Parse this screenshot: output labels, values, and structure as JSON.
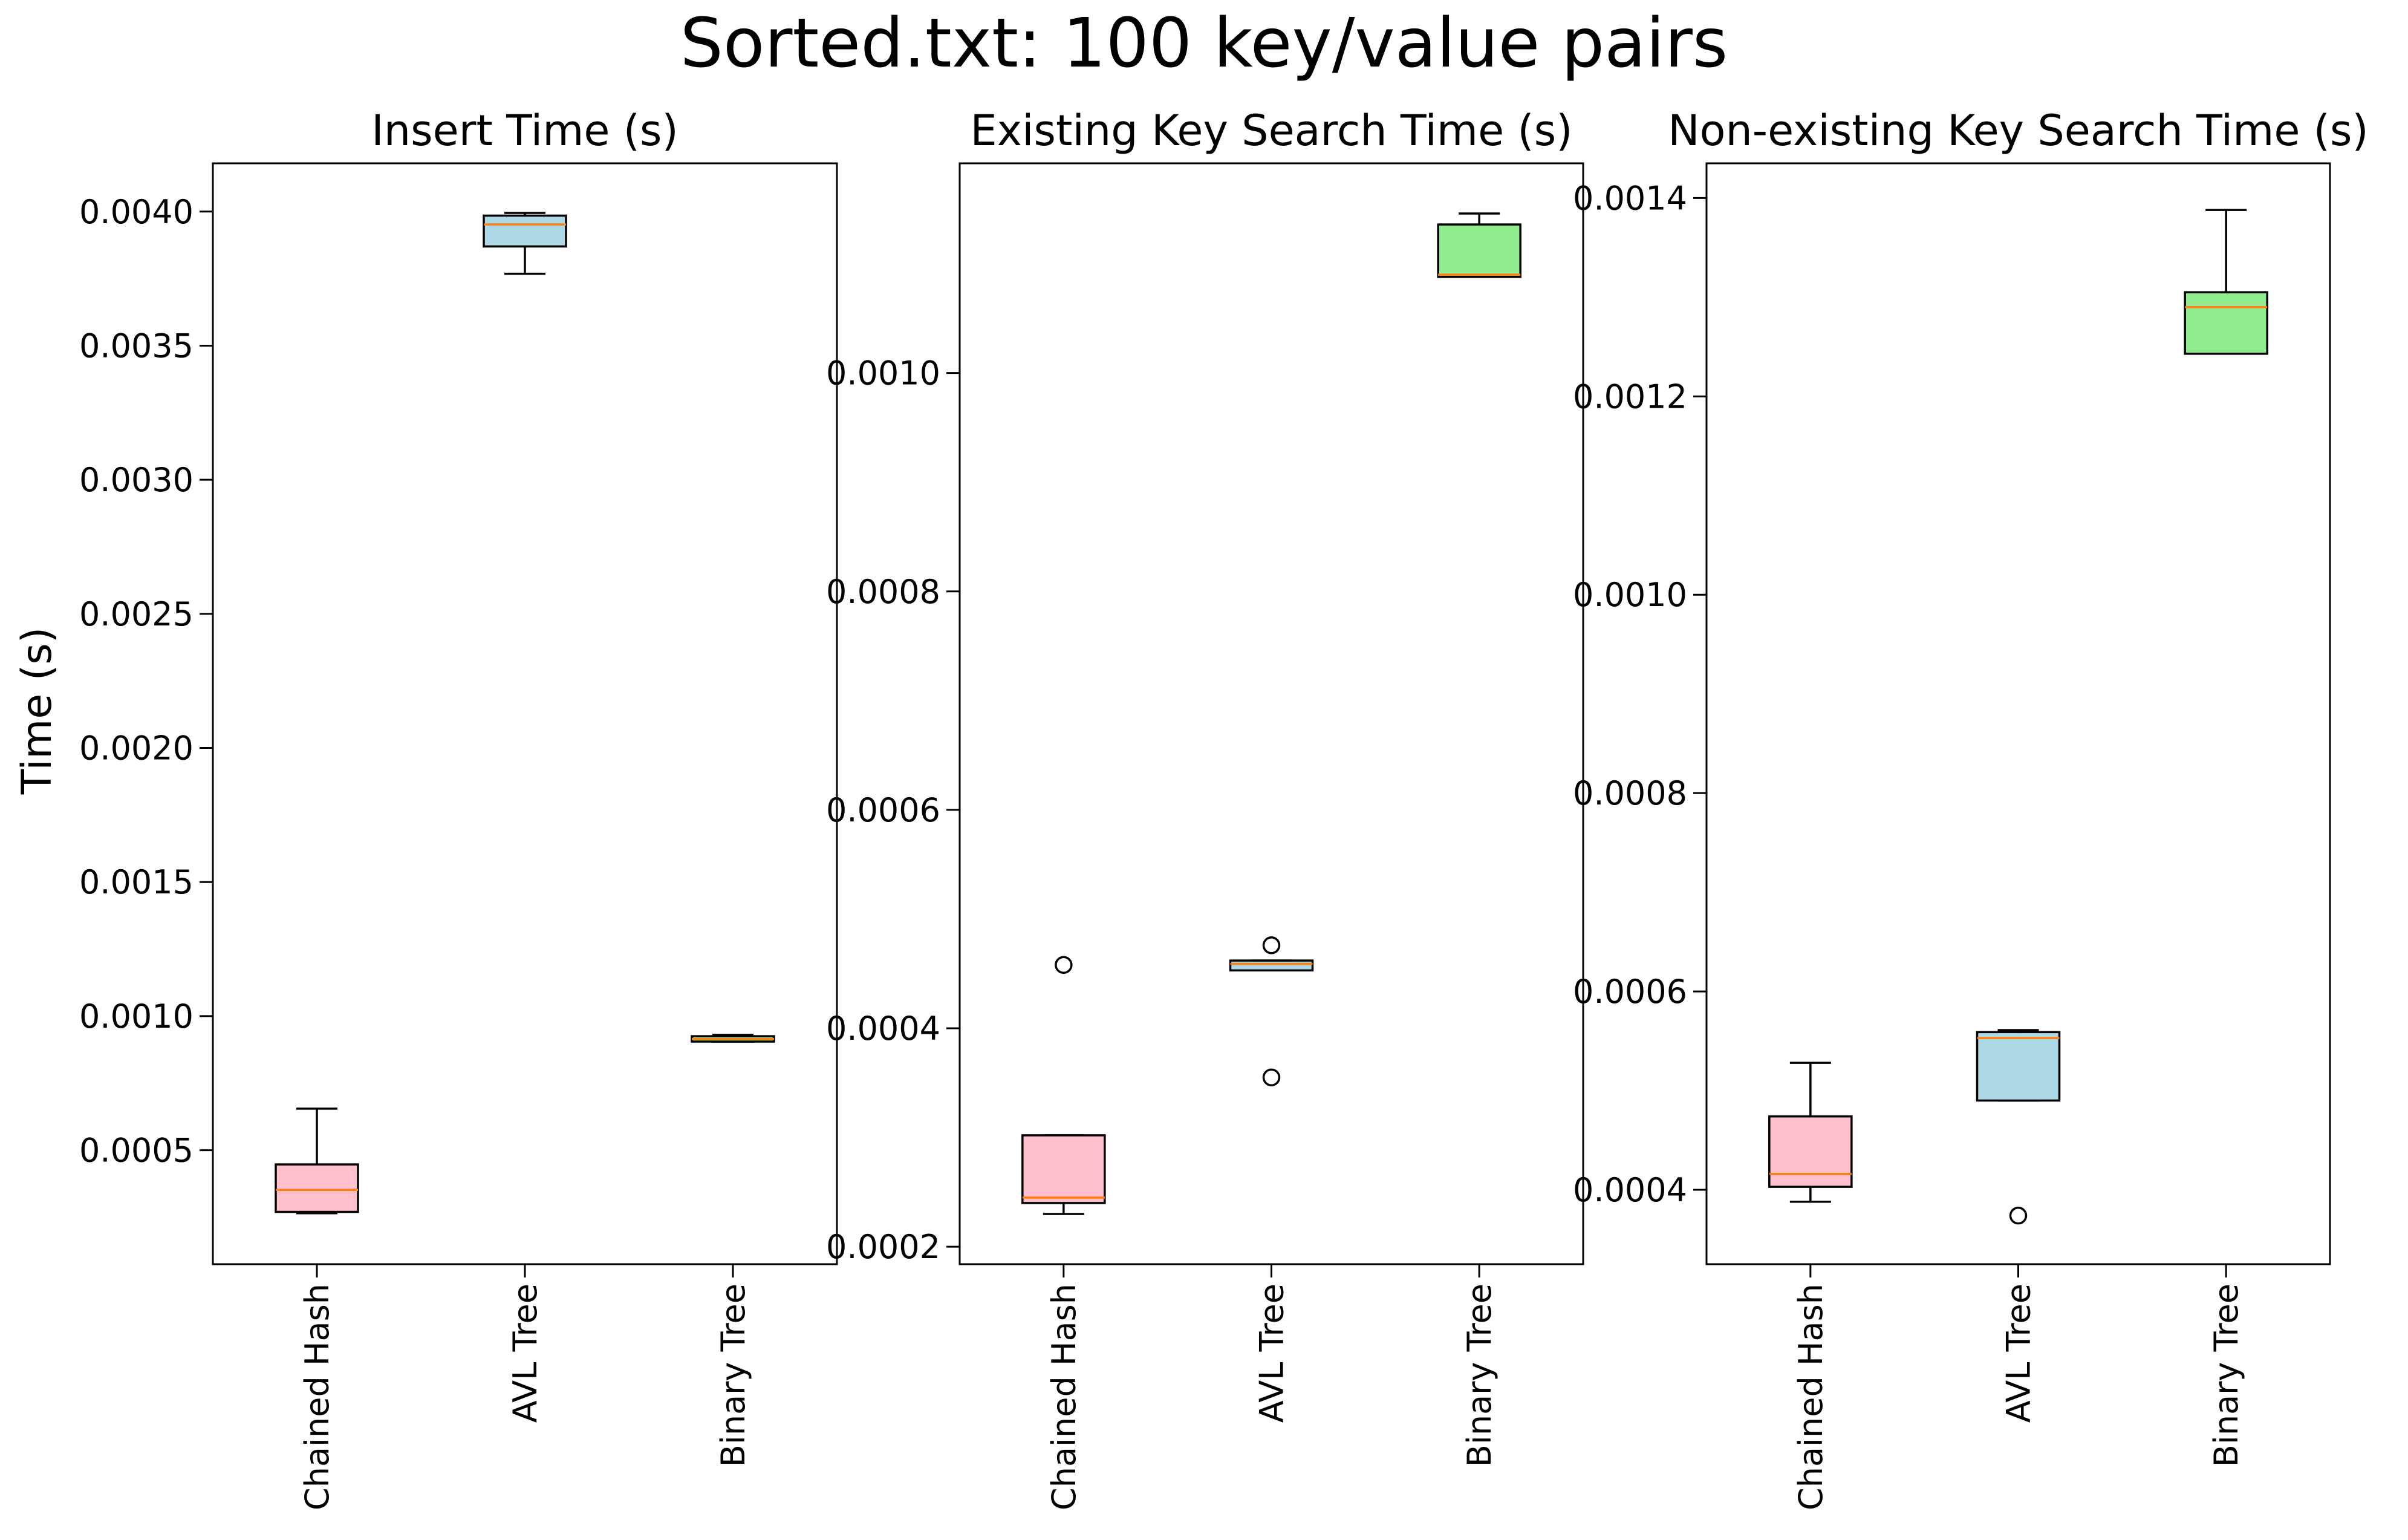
{
  "figure": {
    "suptitle": "Sorted.txt: 100 key/value pairs",
    "shared_ylabel": "Time (s)"
  },
  "colors": {
    "chained_hash_box": "#ffc0cb",
    "avl_tree_box": "#add8e6",
    "binary_tree_box": "#90ee90",
    "median_line": "#ff7f0e",
    "outline": "#000000"
  },
  "chart_data": [
    {
      "type": "box",
      "title": "Insert Time (s)",
      "ylabel": "Time (s)",
      "categories": [
        "Chained Hash",
        "AVL Tree",
        "Binary Tree"
      ],
      "ylim": [
        7.5e-05,
        0.00418
      ],
      "yticks": [
        0.0005,
        0.001,
        0.0015,
        0.002,
        0.0025,
        0.003,
        0.0035,
        0.004
      ],
      "ytick_labels": [
        "0.0005",
        "0.0010",
        "0.0015",
        "0.0020",
        "0.0025",
        "0.0030",
        "0.0035",
        "0.0040"
      ],
      "boxes": [
        {
          "name": "Chained Hash",
          "whisker_low": 0.000265,
          "q1": 0.00027,
          "median": 0.000352,
          "q3": 0.000447,
          "whisker_high": 0.000655,
          "outliers": [],
          "color_key": "chained_hash_box"
        },
        {
          "name": "AVL Tree",
          "whisker_low": 0.003768,
          "q1": 0.00387,
          "median": 0.003952,
          "q3": 0.003985,
          "whisker_high": 0.003995,
          "outliers": [],
          "color_key": "avl_tree_box"
        },
        {
          "name": "Binary Tree",
          "whisker_low": 0.000905,
          "q1": 0.000905,
          "median": 0.000915,
          "q3": 0.000925,
          "whisker_high": 0.00093,
          "outliers": [],
          "color_key": "binary_tree_box"
        }
      ],
      "grid": false
    },
    {
      "type": "box",
      "title": "Existing Key Search Time (s)",
      "categories": [
        "Chained Hash",
        "AVL Tree",
        "Binary Tree"
      ],
      "ylim": [
        0.000184,
        0.001192
      ],
      "yticks": [
        0.0002,
        0.0004,
        0.0006,
        0.0008,
        0.001
      ],
      "ytick_labels": [
        "0.0002",
        "0.0004",
        "0.0006",
        "0.0008",
        "0.0010"
      ],
      "boxes": [
        {
          "name": "Chained Hash",
          "whisker_low": 0.00023,
          "q1": 0.00024,
          "median": 0.000245,
          "q3": 0.000302,
          "whisker_high": 0.000302,
          "outliers": [
            0.000458
          ],
          "color_key": "chained_hash_box"
        },
        {
          "name": "AVL Tree",
          "whisker_low": 0.000453,
          "q1": 0.000453,
          "median": 0.000459,
          "q3": 0.000462,
          "whisker_high": 0.000462,
          "outliers": [
            0.000476,
            0.000355
          ],
          "color_key": "avl_tree_box"
        },
        {
          "name": "Binary Tree",
          "whisker_low": 0.001088,
          "q1": 0.001088,
          "median": 0.00109,
          "q3": 0.001136,
          "whisker_high": 0.001146,
          "outliers": [],
          "color_key": "binary_tree_box"
        }
      ],
      "grid": false
    },
    {
      "type": "box",
      "title": "Non-existing Key Search Time (s)",
      "categories": [
        "Chained Hash",
        "AVL Tree",
        "Binary Tree"
      ],
      "ylim": [
        0.000325,
        0.001435
      ],
      "yticks": [
        0.0004,
        0.0006,
        0.0008,
        0.001,
        0.0012,
        0.0014
      ],
      "ytick_labels": [
        "0.0004",
        "0.0006",
        "0.0008",
        "0.0010",
        "0.0012",
        "0.0014"
      ],
      "boxes": [
        {
          "name": "Chained Hash",
          "whisker_low": 0.000388,
          "q1": 0.000403,
          "median": 0.000416,
          "q3": 0.000474,
          "whisker_high": 0.000528,
          "outliers": [],
          "color_key": "chained_hash_box"
        },
        {
          "name": "AVL Tree",
          "whisker_low": 0.00049,
          "q1": 0.00049,
          "median": 0.000553,
          "q3": 0.000559,
          "whisker_high": 0.000561,
          "outliers": [
            0.000374
          ],
          "color_key": "avl_tree_box"
        },
        {
          "name": "Binary Tree",
          "whisker_low": 0.001243,
          "q1": 0.001243,
          "median": 0.00129,
          "q3": 0.001305,
          "whisker_high": 0.001388,
          "outliers": [],
          "color_key": "binary_tree_box"
        }
      ],
      "grid": false
    }
  ]
}
